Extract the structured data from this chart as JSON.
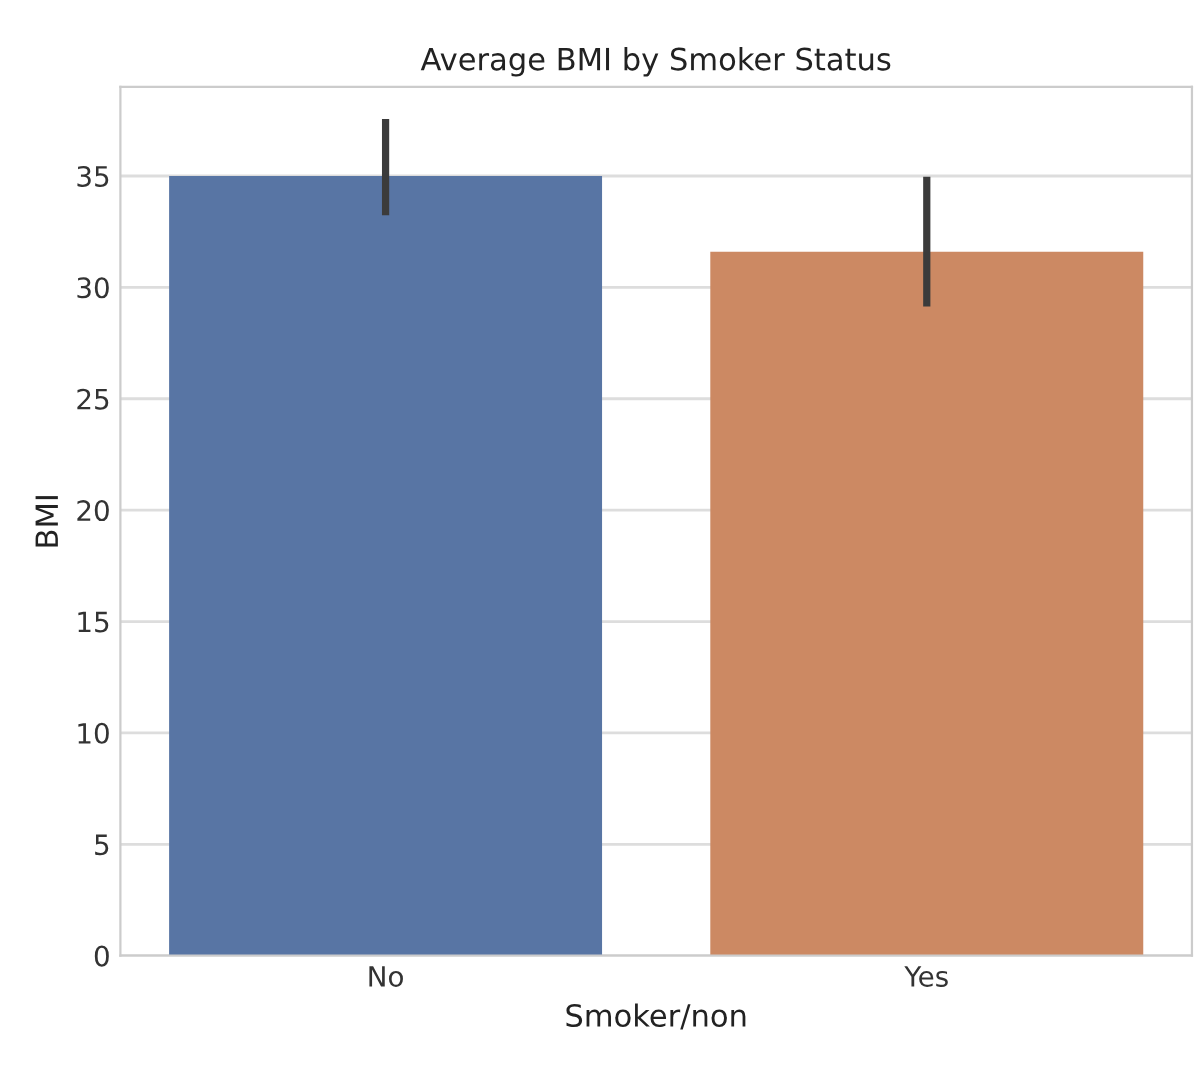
{
  "chart_data": {
    "type": "bar",
    "title": "Average BMI by Smoker Status",
    "xlabel": "Smoker/non",
    "ylabel": "BMI",
    "categories": [
      "No",
      "Yes"
    ],
    "values": [
      35.0,
      31.6
    ],
    "colors": [
      "#5875a4",
      "#cc8963"
    ],
    "errors": [
      [
        33.4,
        37.4
      ],
      [
        29.3,
        34.8
      ]
    ],
    "ylim": [
      0,
      39
    ],
    "yticks": [
      0,
      5,
      10,
      15,
      20,
      25,
      30,
      35
    ],
    "grid": "y"
  }
}
